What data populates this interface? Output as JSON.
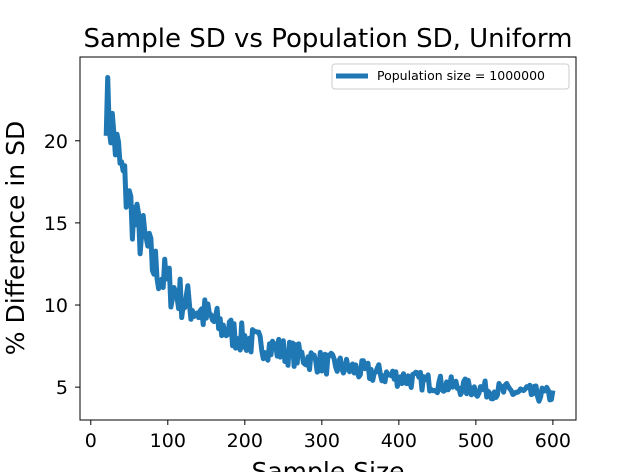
{
  "chart_data": {
    "type": "line",
    "title": "Sample SD vs Population SD, Uniform",
    "xlabel": "Sample Size",
    "ylabel": "% Difference in SD",
    "xlim": [
      -14,
      630
    ],
    "ylim": [
      3,
      25.1
    ],
    "xticks": [
      0,
      100,
      200,
      300,
      400,
      500,
      600
    ],
    "yticks": [
      5,
      10,
      15,
      20
    ],
    "grid": false,
    "legend_position": "top-right",
    "series": [
      {
        "name": "Population size = 1000000",
        "color": "#1f77b4",
        "x_start": 20,
        "x_end": 600,
        "x_step": 2,
        "envelope": [
          {
            "x": 20,
            "y": 22.5
          },
          {
            "x": 25,
            "y": 21.3
          },
          {
            "x": 30,
            "y": 20.3
          },
          {
            "x": 40,
            "y": 18.0
          },
          {
            "x": 50,
            "y": 16.2
          },
          {
            "x": 60,
            "y": 14.7
          },
          {
            "x": 70,
            "y": 13.9
          },
          {
            "x": 80,
            "y": 12.5
          },
          {
            "x": 100,
            "y": 11.3
          },
          {
            "x": 120,
            "y": 10.3
          },
          {
            "x": 150,
            "y": 9.3
          },
          {
            "x": 175,
            "y": 8.5
          },
          {
            "x": 200,
            "y": 7.9
          },
          {
            "x": 250,
            "y": 7.2
          },
          {
            "x": 300,
            "y": 6.5
          },
          {
            "x": 350,
            "y": 6.0
          },
          {
            "x": 400,
            "y": 5.6
          },
          {
            "x": 450,
            "y": 5.2
          },
          {
            "x": 500,
            "y": 4.9
          },
          {
            "x": 550,
            "y": 4.7
          },
          {
            "x": 600,
            "y": 4.5
          }
        ],
        "spread": [
          {
            "x": 20,
            "y": 2.2
          },
          {
            "x": 60,
            "y": 1.7
          },
          {
            "x": 100,
            "y": 1.4
          },
          {
            "x": 200,
            "y": 0.9
          },
          {
            "x": 300,
            "y": 0.7
          },
          {
            "x": 450,
            "y": 0.55
          },
          {
            "x": 600,
            "y": 0.5
          }
        ]
      }
    ]
  }
}
